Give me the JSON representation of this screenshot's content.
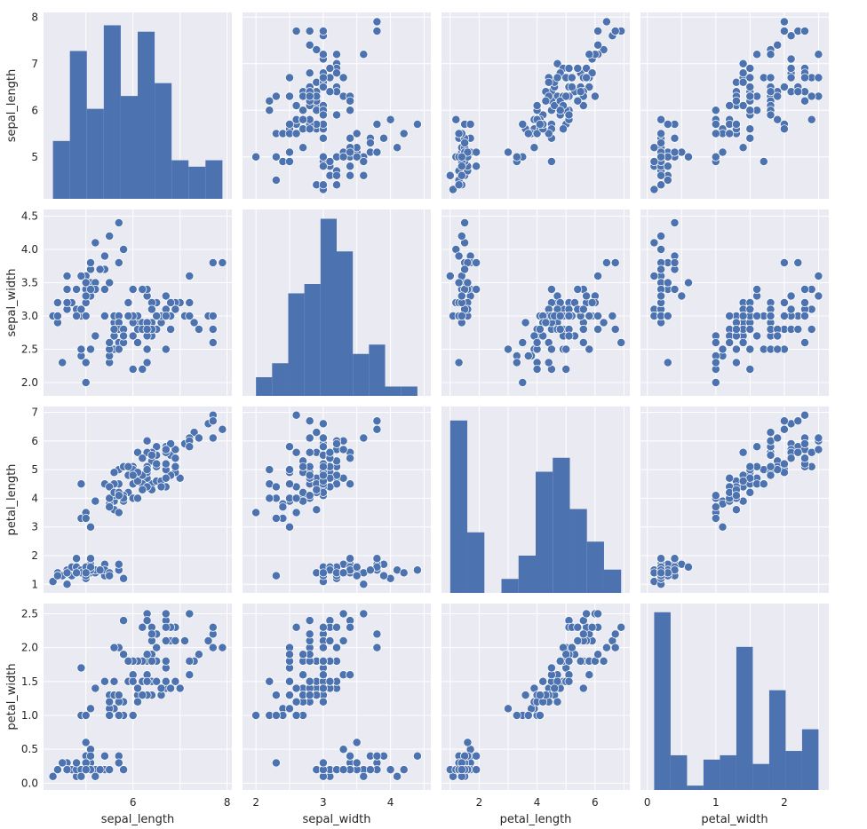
{
  "chart_data": {
    "type": "scatter",
    "style": {
      "panel_bg": "#EAEAF2",
      "grid": "#ffffff",
      "mark": "#4C72B0",
      "mark_edge": "#ffffff"
    },
    "variables": [
      {
        "name": "sepal_length",
        "ticks": [
          5,
          6,
          7,
          8
        ],
        "ytick_labels": [
          "5",
          "6",
          "7",
          "8"
        ],
        "xtick_labels": [
          "",
          "6",
          "",
          "8"
        ],
        "range": [
          4.1,
          8.1
        ]
      },
      {
        "name": "sepal_width",
        "ticks": [
          2.0,
          2.5,
          3.0,
          3.5,
          4.0,
          4.5
        ],
        "ytick_labels": [
          "2.0",
          "2.5",
          "3.0",
          "3.5",
          "4.0",
          "4.5"
        ],
        "xtick_labels": [
          "2",
          "",
          "3",
          "",
          "4",
          ""
        ],
        "range": [
          1.8,
          4.6
        ]
      },
      {
        "name": "petal_length",
        "ticks": [
          1,
          2,
          3,
          4,
          5,
          6,
          7
        ],
        "ytick_labels": [
          "1",
          "2",
          "3",
          "4",
          "5",
          "6",
          "7"
        ],
        "xtick_labels": [
          "",
          "2",
          "",
          "4",
          "",
          "6",
          ""
        ],
        "range": [
          0.7,
          7.2
        ]
      },
      {
        "name": "petal_width",
        "ticks": [
          0.0,
          0.5,
          1.0,
          1.5,
          2.0,
          2.5
        ],
        "ytick_labels": [
          "0.0",
          "0.5",
          "1.0",
          "1.5",
          "2.0",
          "2.5"
        ],
        "xtick_labels": [
          "0",
          "",
          "1",
          "",
          "2",
          ""
        ],
        "range": [
          -0.1,
          2.65
        ]
      }
    ],
    "histograms": [
      {
        "variable": "sepal_length",
        "bin_edges": [
          4.3,
          4.66,
          5.02,
          5.38,
          5.74,
          6.1,
          6.46,
          6.82,
          7.18,
          7.54,
          7.9
        ],
        "counts": [
          9,
          23,
          14,
          27,
          16,
          26,
          18,
          6,
          5,
          6
        ],
        "ylim": [
          0,
          29
        ]
      },
      {
        "variable": "sepal_width",
        "bin_edges": [
          2.0,
          2.24,
          2.48,
          2.72,
          2.96,
          3.2,
          3.44,
          3.68,
          3.92,
          4.16,
          4.4
        ],
        "counts": [
          4,
          7,
          22,
          24,
          38,
          31,
          9,
          11,
          2,
          2
        ],
        "ylim": [
          0,
          40
        ]
      },
      {
        "variable": "petal_length",
        "bin_edges": [
          1.0,
          1.59,
          2.18,
          2.77,
          3.36,
          3.95,
          4.54,
          5.13,
          5.72,
          6.31,
          6.9
        ],
        "counts": [
          37,
          13,
          0,
          3,
          8,
          26,
          29,
          18,
          11,
          5
        ],
        "ylim": [
          0,
          40
        ]
      },
      {
        "variable": "petal_width",
        "bin_edges": [
          0.1,
          0.34,
          0.58,
          0.82,
          1.06,
          1.3,
          1.54,
          1.78,
          2.02,
          2.26,
          2.5
        ],
        "counts": [
          41,
          8,
          1,
          7,
          8,
          33,
          6,
          23,
          9,
          14
        ],
        "ylim": [
          0,
          43
        ]
      }
    ],
    "rows": [
      [
        5.1,
        3.5,
        1.4,
        0.2
      ],
      [
        4.9,
        3.0,
        1.4,
        0.2
      ],
      [
        4.7,
        3.2,
        1.3,
        0.2
      ],
      [
        4.6,
        3.1,
        1.5,
        0.2
      ],
      [
        5.0,
        3.6,
        1.4,
        0.2
      ],
      [
        5.4,
        3.9,
        1.7,
        0.4
      ],
      [
        4.6,
        3.4,
        1.4,
        0.3
      ],
      [
        5.0,
        3.4,
        1.5,
        0.2
      ],
      [
        4.4,
        2.9,
        1.4,
        0.2
      ],
      [
        4.9,
        3.1,
        1.5,
        0.1
      ],
      [
        5.4,
        3.7,
        1.5,
        0.2
      ],
      [
        4.8,
        3.4,
        1.6,
        0.2
      ],
      [
        4.8,
        3.0,
        1.4,
        0.1
      ],
      [
        4.3,
        3.0,
        1.1,
        0.1
      ],
      [
        5.8,
        4.0,
        1.2,
        0.2
      ],
      [
        5.7,
        4.4,
        1.5,
        0.4
      ],
      [
        5.4,
        3.9,
        1.3,
        0.4
      ],
      [
        5.1,
        3.5,
        1.4,
        0.3
      ],
      [
        5.7,
        3.8,
        1.7,
        0.3
      ],
      [
        5.1,
        3.8,
        1.5,
        0.3
      ],
      [
        5.4,
        3.4,
        1.7,
        0.2
      ],
      [
        5.1,
        3.7,
        1.5,
        0.4
      ],
      [
        4.6,
        3.6,
        1.0,
        0.2
      ],
      [
        5.1,
        3.3,
        1.7,
        0.5
      ],
      [
        4.8,
        3.4,
        1.9,
        0.2
      ],
      [
        5.0,
        3.0,
        1.6,
        0.2
      ],
      [
        5.0,
        3.4,
        1.6,
        0.4
      ],
      [
        5.2,
        3.5,
        1.5,
        0.2
      ],
      [
        5.2,
        3.4,
        1.4,
        0.2
      ],
      [
        4.7,
        3.2,
        1.6,
        0.2
      ],
      [
        4.8,
        3.1,
        1.6,
        0.2
      ],
      [
        5.4,
        3.4,
        1.5,
        0.4
      ],
      [
        5.2,
        4.1,
        1.5,
        0.1
      ],
      [
        5.5,
        4.2,
        1.4,
        0.2
      ],
      [
        4.9,
        3.1,
        1.5,
        0.2
      ],
      [
        5.0,
        3.2,
        1.2,
        0.2
      ],
      [
        5.5,
        3.5,
        1.3,
        0.2
      ],
      [
        4.9,
        3.6,
        1.4,
        0.1
      ],
      [
        4.4,
        3.0,
        1.3,
        0.2
      ],
      [
        5.1,
        3.4,
        1.5,
        0.2
      ],
      [
        5.0,
        3.5,
        1.3,
        0.3
      ],
      [
        4.5,
        2.3,
        1.3,
        0.3
      ],
      [
        4.4,
        3.2,
        1.3,
        0.2
      ],
      [
        5.0,
        3.5,
        1.6,
        0.6
      ],
      [
        5.1,
        3.8,
        1.9,
        0.4
      ],
      [
        4.8,
        3.0,
        1.4,
        0.3
      ],
      [
        5.1,
        3.8,
        1.6,
        0.2
      ],
      [
        4.6,
        3.2,
        1.4,
        0.2
      ],
      [
        5.3,
        3.7,
        1.5,
        0.2
      ],
      [
        5.0,
        3.3,
        1.4,
        0.2
      ],
      [
        7.0,
        3.2,
        4.7,
        1.4
      ],
      [
        6.4,
        3.2,
        4.5,
        1.5
      ],
      [
        6.9,
        3.1,
        4.9,
        1.5
      ],
      [
        5.5,
        2.3,
        4.0,
        1.3
      ],
      [
        6.5,
        2.8,
        4.6,
        1.5
      ],
      [
        5.7,
        2.8,
        4.5,
        1.3
      ],
      [
        6.3,
        3.3,
        4.7,
        1.6
      ],
      [
        4.9,
        2.4,
        3.3,
        1.0
      ],
      [
        6.6,
        2.9,
        4.6,
        1.3
      ],
      [
        5.2,
        2.7,
        3.9,
        1.4
      ],
      [
        5.0,
        2.0,
        3.5,
        1.0
      ],
      [
        5.9,
        3.0,
        4.2,
        1.5
      ],
      [
        6.0,
        2.2,
        4.0,
        1.0
      ],
      [
        6.1,
        2.9,
        4.7,
        1.4
      ],
      [
        5.6,
        2.9,
        3.6,
        1.3
      ],
      [
        6.7,
        3.1,
        4.4,
        1.4
      ],
      [
        5.6,
        3.0,
        4.5,
        1.5
      ],
      [
        5.8,
        2.7,
        4.1,
        1.0
      ],
      [
        6.2,
        2.2,
        4.5,
        1.5
      ],
      [
        5.6,
        2.5,
        3.9,
        1.1
      ],
      [
        5.9,
        3.2,
        4.8,
        1.8
      ],
      [
        6.1,
        2.8,
        4.0,
        1.3
      ],
      [
        6.3,
        2.5,
        4.9,
        1.5
      ],
      [
        6.1,
        2.8,
        4.7,
        1.2
      ],
      [
        6.4,
        2.9,
        4.3,
        1.3
      ],
      [
        6.6,
        3.0,
        4.4,
        1.4
      ],
      [
        6.8,
        2.8,
        4.8,
        1.4
      ],
      [
        6.7,
        3.0,
        5.0,
        1.7
      ],
      [
        6.0,
        2.9,
        4.5,
        1.5
      ],
      [
        5.7,
        2.6,
        3.5,
        1.0
      ],
      [
        5.5,
        2.4,
        3.8,
        1.1
      ],
      [
        5.5,
        2.4,
        3.7,
        1.0
      ],
      [
        5.8,
        2.7,
        3.9,
        1.2
      ],
      [
        6.0,
        2.7,
        5.1,
        1.6
      ],
      [
        5.4,
        3.0,
        4.5,
        1.5
      ],
      [
        6.0,
        3.4,
        4.5,
        1.6
      ],
      [
        6.7,
        3.1,
        4.7,
        1.5
      ],
      [
        6.3,
        2.3,
        4.4,
        1.3
      ],
      [
        5.6,
        3.0,
        4.1,
        1.3
      ],
      [
        5.5,
        2.5,
        4.0,
        1.3
      ],
      [
        5.5,
        2.6,
        4.4,
        1.2
      ],
      [
        6.1,
        3.0,
        4.6,
        1.4
      ],
      [
        5.8,
        2.6,
        4.0,
        1.2
      ],
      [
        5.0,
        2.3,
        3.3,
        1.0
      ],
      [
        5.6,
        2.7,
        4.2,
        1.3
      ],
      [
        5.7,
        3.0,
        4.2,
        1.2
      ],
      [
        5.7,
        2.9,
        4.2,
        1.3
      ],
      [
        6.2,
        2.9,
        4.3,
        1.3
      ],
      [
        5.1,
        2.5,
        3.0,
        1.1
      ],
      [
        5.7,
        2.8,
        4.1,
        1.3
      ],
      [
        6.3,
        3.3,
        6.0,
        2.5
      ],
      [
        5.8,
        2.7,
        5.1,
        1.9
      ],
      [
        7.1,
        3.0,
        5.9,
        2.1
      ],
      [
        6.3,
        2.9,
        5.6,
        1.8
      ],
      [
        6.5,
        3.0,
        5.8,
        2.2
      ],
      [
        7.6,
        3.0,
        6.6,
        2.1
      ],
      [
        4.9,
        2.5,
        4.5,
        1.7
      ],
      [
        7.3,
        2.9,
        6.3,
        1.8
      ],
      [
        6.7,
        2.5,
        5.8,
        1.8
      ],
      [
        7.2,
        3.6,
        6.1,
        2.5
      ],
      [
        6.5,
        3.2,
        5.1,
        2.0
      ],
      [
        6.4,
        2.7,
        5.3,
        1.9
      ],
      [
        6.8,
        3.0,
        5.5,
        2.1
      ],
      [
        5.7,
        2.5,
        5.0,
        2.0
      ],
      [
        5.8,
        2.8,
        5.1,
        2.4
      ],
      [
        6.4,
        3.2,
        5.3,
        2.3
      ],
      [
        6.5,
        3.0,
        5.5,
        1.8
      ],
      [
        7.7,
        3.8,
        6.7,
        2.2
      ],
      [
        7.7,
        2.6,
        6.9,
        2.3
      ],
      [
        6.0,
        2.2,
        5.0,
        1.5
      ],
      [
        6.9,
        3.2,
        5.7,
        2.3
      ],
      [
        5.6,
        2.8,
        4.9,
        2.0
      ],
      [
        7.7,
        2.8,
        6.7,
        2.0
      ],
      [
        6.3,
        2.7,
        4.9,
        1.8
      ],
      [
        6.7,
        3.3,
        5.7,
        2.1
      ],
      [
        7.2,
        3.2,
        6.0,
        1.8
      ],
      [
        6.2,
        2.8,
        4.8,
        1.8
      ],
      [
        6.1,
        3.0,
        4.9,
        1.8
      ],
      [
        6.4,
        2.8,
        5.6,
        2.1
      ],
      [
        7.2,
        3.0,
        5.8,
        1.6
      ],
      [
        7.4,
        2.8,
        6.1,
        1.9
      ],
      [
        7.9,
        3.8,
        6.4,
        2.0
      ],
      [
        6.4,
        2.8,
        5.6,
        2.2
      ],
      [
        6.3,
        2.8,
        5.1,
        1.5
      ],
      [
        6.1,
        2.6,
        5.6,
        1.4
      ],
      [
        7.7,
        3.0,
        6.1,
        2.3
      ],
      [
        6.3,
        3.4,
        5.6,
        2.4
      ],
      [
        6.4,
        3.1,
        5.5,
        1.8
      ],
      [
        6.0,
        3.0,
        4.8,
        1.8
      ],
      [
        6.9,
        3.1,
        5.4,
        2.1
      ],
      [
        6.7,
        3.1,
        5.6,
        2.4
      ],
      [
        6.9,
        3.1,
        5.1,
        2.3
      ],
      [
        5.8,
        2.7,
        5.1,
        1.9
      ],
      [
        6.8,
        3.2,
        5.9,
        2.3
      ],
      [
        6.7,
        3.3,
        5.7,
        2.5
      ],
      [
        6.7,
        3.0,
        5.2,
        2.3
      ],
      [
        6.3,
        2.5,
        5.0,
        1.9
      ],
      [
        6.5,
        3.0,
        5.2,
        2.0
      ],
      [
        6.2,
        3.4,
        5.4,
        2.3
      ],
      [
        5.9,
        3.0,
        5.1,
        1.8
      ]
    ]
  }
}
